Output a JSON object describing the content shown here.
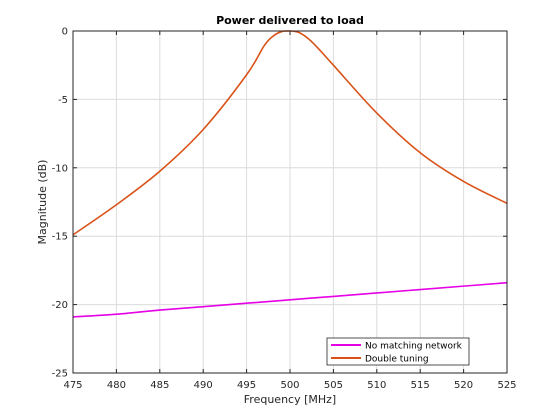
{
  "chart_data": {
    "type": "line",
    "title": "Power delivered to load",
    "xlabel": "Frequency [MHz]",
    "ylabel": "Magnitude (dB)",
    "xlim": [
      475,
      525
    ],
    "ylim": [
      -25,
      0
    ],
    "x_ticks": [
      475,
      480,
      485,
      490,
      495,
      500,
      505,
      510,
      515,
      520,
      525
    ],
    "y_ticks": [
      0,
      -5,
      -10,
      -15,
      -20,
      -25
    ],
    "grid": true,
    "legend_position": "bottom-right",
    "series": [
      {
        "name": "No matching network",
        "color": "#e600e6",
        "x": [
          475,
          480,
          485,
          490,
          495,
          500,
          505,
          510,
          515,
          520,
          525
        ],
        "y": [
          -20.9,
          -20.7,
          -20.4,
          -20.15,
          -19.9,
          -19.65,
          -19.4,
          -19.15,
          -18.9,
          -18.65,
          -18.4
        ]
      },
      {
        "name": "Double tuning",
        "color": "#d95319",
        "x": [
          475,
          480,
          485,
          490,
          495,
          497,
          498,
          499,
          500,
          501,
          502,
          503,
          505,
          510,
          515,
          520,
          525
        ],
        "y": [
          -14.9,
          -12.7,
          -10.25,
          -7.2,
          -3.2,
          -1.1,
          -0.4,
          -0.05,
          0,
          -0.1,
          -0.5,
          -1.1,
          -2.5,
          -6.0,
          -8.9,
          -11.0,
          -12.6
        ]
      }
    ]
  }
}
